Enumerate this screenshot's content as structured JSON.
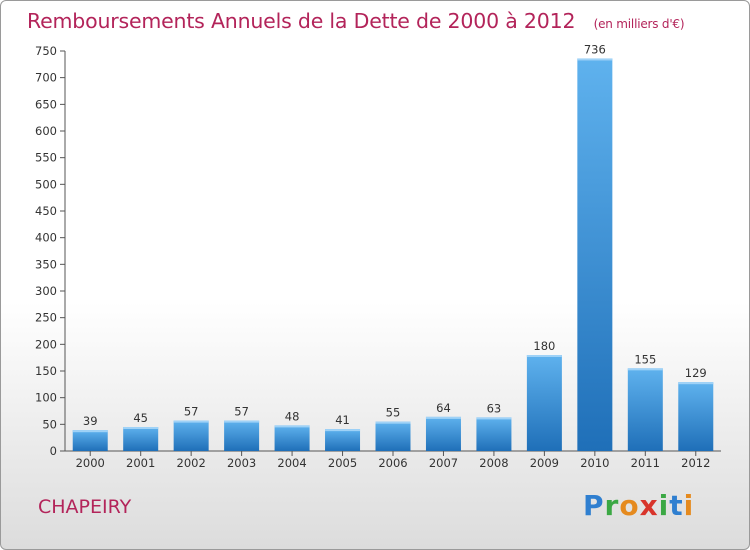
{
  "header": {
    "title": "Remboursements Annuels de la Dette de 2000 à 2012",
    "subtitle": "(en milliers d'€)"
  },
  "footer": {
    "commune": "CHAPEIRY",
    "logo_letters": [
      {
        "ch": "P",
        "color": "#2f7fd0"
      },
      {
        "ch": "r",
        "color": "#3ba844"
      },
      {
        "ch": "o",
        "color": "#e58a1e"
      },
      {
        "ch": "x",
        "color": "#d8342b"
      },
      {
        "ch": "i",
        "color": "#3ba844"
      },
      {
        "ch": "t",
        "color": "#2f7fd0"
      },
      {
        "ch": "i",
        "color": "#e58a1e"
      }
    ]
  },
  "chart_data": {
    "type": "bar",
    "title": "Remboursements Annuels de la Dette de 2000 à 2012",
    "subtitle": "(en milliers d'€)",
    "categories": [
      "2000",
      "2001",
      "2002",
      "2003",
      "2004",
      "2005",
      "2006",
      "2007",
      "2008",
      "2009",
      "2010",
      "2011",
      "2012"
    ],
    "values": [
      39,
      45,
      57,
      57,
      48,
      41,
      55,
      64,
      63,
      180,
      736,
      155,
      129
    ],
    "ylim": [
      0,
      750
    ],
    "yticks": [
      0,
      50,
      100,
      150,
      200,
      250,
      300,
      350,
      400,
      450,
      500,
      550,
      600,
      650,
      700,
      750
    ],
    "grid": false,
    "bar_color": "#3a8fd9",
    "xlabel": "",
    "ylabel": ""
  }
}
